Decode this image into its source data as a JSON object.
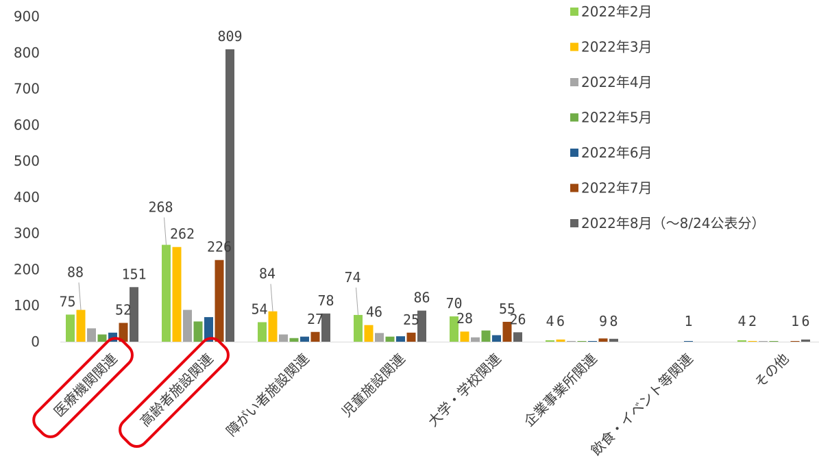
{
  "chart_data": {
    "type": "bar",
    "ylim": [
      0,
      900
    ],
    "yticks": [
      "0",
      "100",
      "200",
      "300",
      "400",
      "500",
      "600",
      "700",
      "800",
      "900"
    ],
    "categories": [
      "医療機関関連",
      "高齢者施設関連",
      "障がい者施設関連",
      "児童施設関連",
      "大学・学校関連",
      "企業事業所関連",
      "飲食・イベント等関連",
      "その他"
    ],
    "highlighted_categories": [
      "医療機関関連",
      "高齢者施設関連"
    ],
    "highlight_color": "#e8000e",
    "series": [
      {
        "name": "2022年2月",
        "color": "#92d050",
        "values": [
          75,
          268,
          54,
          74,
          70,
          4,
          0,
          4
        ]
      },
      {
        "name": "2022年3月",
        "color": "#ffc000",
        "values": [
          88,
          262,
          84,
          46,
          28,
          6,
          0,
          2
        ]
      },
      {
        "name": "2022年4月",
        "color": "#a6a6a6",
        "values": [
          37,
          88,
          20,
          24,
          12,
          2,
          0,
          1
        ]
      },
      {
        "name": "2022年5月",
        "color": "#70ad47",
        "values": [
          20,
          56,
          10,
          14,
          31,
          1,
          0,
          1
        ]
      },
      {
        "name": "2022年6月",
        "color": "#255e91",
        "values": [
          25,
          68,
          14,
          15,
          18,
          1,
          1,
          0
        ]
      },
      {
        "name": "2022年7月",
        "color": "#9e480e",
        "values": [
          52,
          226,
          27,
          25,
          55,
          9,
          0,
          1
        ]
      },
      {
        "name": "2022年8月（～8/24公表分）",
        "color": "#636363",
        "values": [
          151,
          809,
          78,
          86,
          26,
          8,
          0,
          6
        ]
      }
    ],
    "data_labels": [
      {
        "text": "75",
        "cat": 0,
        "series": 0
      },
      {
        "text": "88",
        "cat": 0,
        "series": 1
      },
      {
        "text": "52",
        "cat": 0,
        "series": 5
      },
      {
        "text": "151",
        "cat": 0,
        "series": 6
      },
      {
        "text": "268",
        "cat": 1,
        "series": 0
      },
      {
        "text": "262",
        "cat": 1,
        "series": 1
      },
      {
        "text": "226",
        "cat": 1,
        "series": 5
      },
      {
        "text": "809",
        "cat": 1,
        "series": 6
      },
      {
        "text": "54",
        "cat": 2,
        "series": 0
      },
      {
        "text": "84",
        "cat": 2,
        "series": 1
      },
      {
        "text": "27",
        "cat": 2,
        "series": 5
      },
      {
        "text": "78",
        "cat": 2,
        "series": 6
      },
      {
        "text": "74",
        "cat": 3,
        "series": 0
      },
      {
        "text": "46",
        "cat": 3,
        "series": 1
      },
      {
        "text": "25",
        "cat": 3,
        "series": 5
      },
      {
        "text": "86",
        "cat": 3,
        "series": 6
      },
      {
        "text": "70",
        "cat": 4,
        "series": 0
      },
      {
        "text": "28",
        "cat": 4,
        "series": 1
      },
      {
        "text": "55",
        "cat": 4,
        "series": 5
      },
      {
        "text": "26",
        "cat": 4,
        "series": 6
      },
      {
        "text": "4",
        "cat": 5,
        "series": 0
      },
      {
        "text": "6",
        "cat": 5,
        "series": 1
      },
      {
        "text": "9",
        "cat": 5,
        "series": 5
      },
      {
        "text": "8",
        "cat": 5,
        "series": 6
      },
      {
        "text": "1",
        "cat": 6,
        "series": 4
      },
      {
        "text": "4",
        "cat": 7,
        "series": 0
      },
      {
        "text": "2",
        "cat": 7,
        "series": 1
      },
      {
        "text": "1",
        "cat": 7,
        "series": 5
      },
      {
        "text": "6",
        "cat": 7,
        "series": 6
      }
    ],
    "legend_position": "top-right",
    "grid": false
  }
}
